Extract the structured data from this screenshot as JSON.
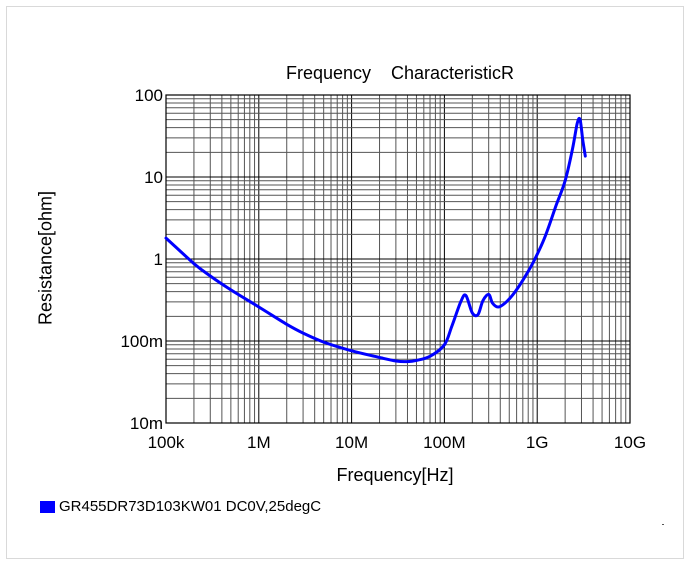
{
  "chart_data": {
    "type": "line",
    "title": "Frequency    CharacteristicR",
    "xlabel": "Frequency[Hz]",
    "ylabel": "Resistance[ohm]",
    "x_scale": "log",
    "y_scale": "log",
    "xlim": [
      100000,
      10000000000
    ],
    "ylim": [
      0.01,
      100
    ],
    "grid": true,
    "x_ticks": [
      {
        "value": 100000,
        "label": "100k"
      },
      {
        "value": 1000000,
        "label": "1M"
      },
      {
        "value": 10000000,
        "label": "10M"
      },
      {
        "value": 100000000,
        "label": "100M"
      },
      {
        "value": 1000000000,
        "label": "1G"
      },
      {
        "value": 10000000000,
        "label": "10G"
      }
    ],
    "y_ticks": [
      {
        "value": 0.01,
        "label": "10m"
      },
      {
        "value": 0.1,
        "label": "100m"
      },
      {
        "value": 1,
        "label": "1"
      },
      {
        "value": 10,
        "label": "10"
      },
      {
        "value": 100,
        "label": "100"
      }
    ],
    "legend_position": "bottom-left",
    "series": [
      {
        "name": "GR455DR73D103KW01 DC0V,25degC",
        "color": "#0000ff",
        "x": [
          100000,
          200000,
          300000,
          500000,
          1000000,
          2000000,
          3000000,
          5000000,
          10000000,
          20000000,
          30000000,
          40000000,
          50000000,
          70000000,
          100000000,
          120000000,
          150000000,
          170000000,
          200000000,
          230000000,
          260000000,
          300000000,
          330000000,
          380000000,
          450000000,
          550000000,
          700000000,
          900000000,
          1200000000,
          1600000000,
          2000000000,
          2400000000,
          2700000000,
          2900000000,
          3100000000,
          3300000000
        ],
        "y": [
          1.8,
          0.88,
          0.62,
          0.42,
          0.26,
          0.16,
          0.125,
          0.097,
          0.076,
          0.063,
          0.057,
          0.056,
          0.058,
          0.065,
          0.09,
          0.15,
          0.3,
          0.36,
          0.22,
          0.21,
          0.31,
          0.37,
          0.29,
          0.26,
          0.29,
          0.37,
          0.55,
          0.9,
          1.8,
          4.5,
          9,
          22,
          45,
          50,
          28,
          18
        ]
      }
    ]
  }
}
